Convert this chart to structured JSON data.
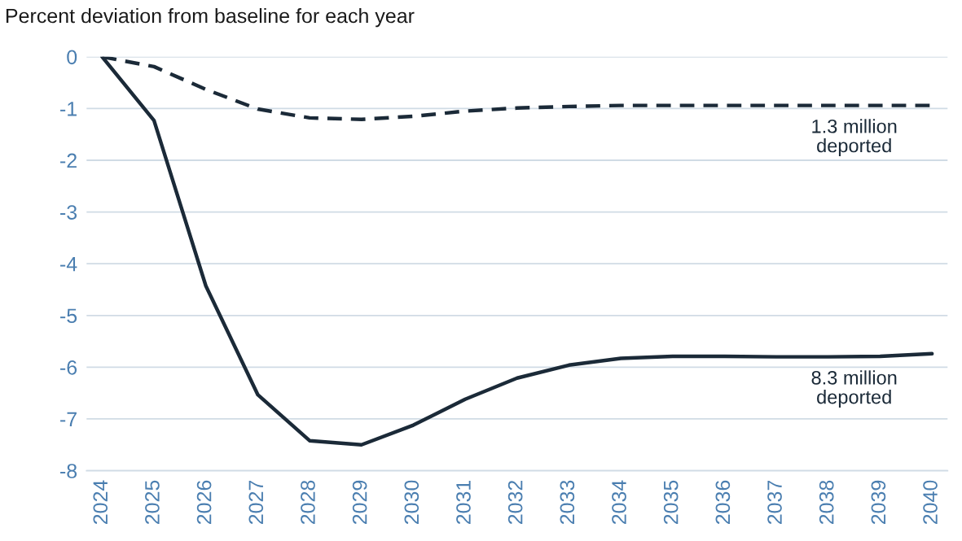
{
  "chart_data": {
    "type": "line",
    "title": "Percent deviation from baseline for each year",
    "categories": [
      "2024",
      "2025",
      "2026",
      "2027",
      "2028",
      "2029",
      "2030",
      "2031",
      "2032",
      "2033",
      "2034",
      "2035",
      "2036",
      "2037",
      "2038",
      "2039",
      "2040"
    ],
    "series": [
      {
        "name": "1.3 million\ndeported",
        "color": "#1b2a38",
        "line_style": "dashed",
        "values": [
          0,
          -0.19,
          -0.63,
          -1.01,
          -1.18,
          -1.21,
          -1.15,
          -1.05,
          -0.99,
          -0.96,
          -0.94,
          -0.94,
          -0.94,
          -0.94,
          -0.94,
          -0.94,
          -0.94
        ]
      },
      {
        "name": "8.3 million\ndeported",
        "color": "#1b2a38",
        "line_style": "solid",
        "values": [
          0,
          -1.23,
          -4.43,
          -6.53,
          -7.42,
          -7.5,
          -7.12,
          -6.62,
          -6.21,
          -5.96,
          -5.83,
          -5.79,
          -5.79,
          -5.8,
          -5.8,
          -5.79,
          -5.74
        ]
      }
    ],
    "ylim": [
      -8,
      0
    ],
    "yticks": [
      -8,
      -7,
      -6,
      -5,
      -4,
      -3,
      -2,
      -1,
      0
    ],
    "grid": "y",
    "legend": false,
    "marker": "none"
  }
}
